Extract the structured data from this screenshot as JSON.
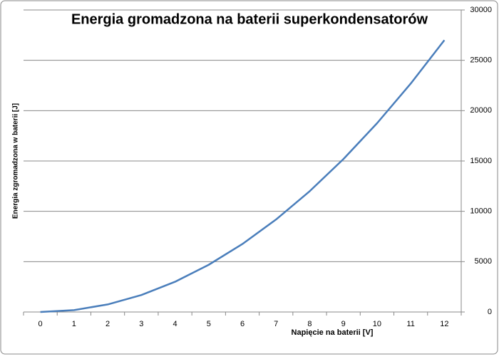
{
  "chart_data": {
    "type": "line",
    "title": "Energia gromadzona na baterii superkondensatorów",
    "x_label": "Napięcie na baterii [V]",
    "y_label": "Energia zgromadzona  w baterii [J]",
    "categories": [
      "0",
      "1",
      "2",
      "3",
      "4",
      "5",
      "6",
      "7",
      "8",
      "9",
      "10",
      "11",
      "12"
    ],
    "series": [
      {
        "color": "#4a7ebb",
        "values": [
          0,
          187.5,
          750,
          1687.5,
          3000,
          4687.5,
          6750,
          9187.5,
          12000,
          15187.5,
          18750,
          22687.5,
          27000
        ]
      }
    ],
    "ylim": [
      0,
      30000
    ],
    "yticks": [
      0,
      5000,
      10000,
      15000,
      20000,
      25000,
      30000
    ],
    "y_axis_side": "right",
    "grid": true
  }
}
